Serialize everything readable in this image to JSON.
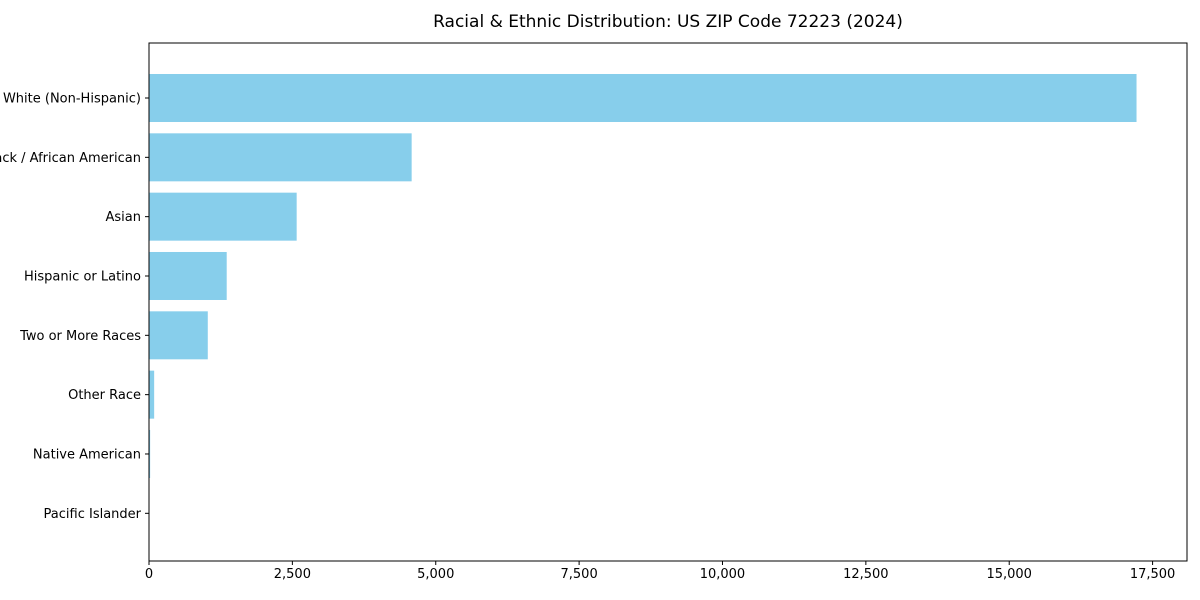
{
  "chart_data": {
    "type": "bar",
    "orientation": "horizontal",
    "title": "Racial & Ethnic Distribution: US ZIP Code 72223 (2024)",
    "categories": [
      "White (Non-Hispanic)",
      "Black / African American",
      "Asian",
      "Hispanic or Latino",
      "Two or More Races",
      "Other Race",
      "Native American",
      "Pacific Islander"
    ],
    "values": [
      17220,
      4580,
      2575,
      1355,
      1025,
      90,
      20,
      5
    ],
    "xlabel": "",
    "ylabel": "",
    "xlim": [
      0,
      18100
    ],
    "x_tick_values": [
      0,
      2500,
      5000,
      7500,
      10000,
      12500,
      15000,
      17500
    ],
    "x_tick_labels": [
      "0",
      "2,500",
      "5,000",
      "7,500",
      "10,000",
      "12,500",
      "15,000",
      "17,500"
    ],
    "bar_color": "#87CEEB",
    "axis_color": "#000000",
    "text_color": "#000000",
    "grid": false,
    "legend": null
  }
}
